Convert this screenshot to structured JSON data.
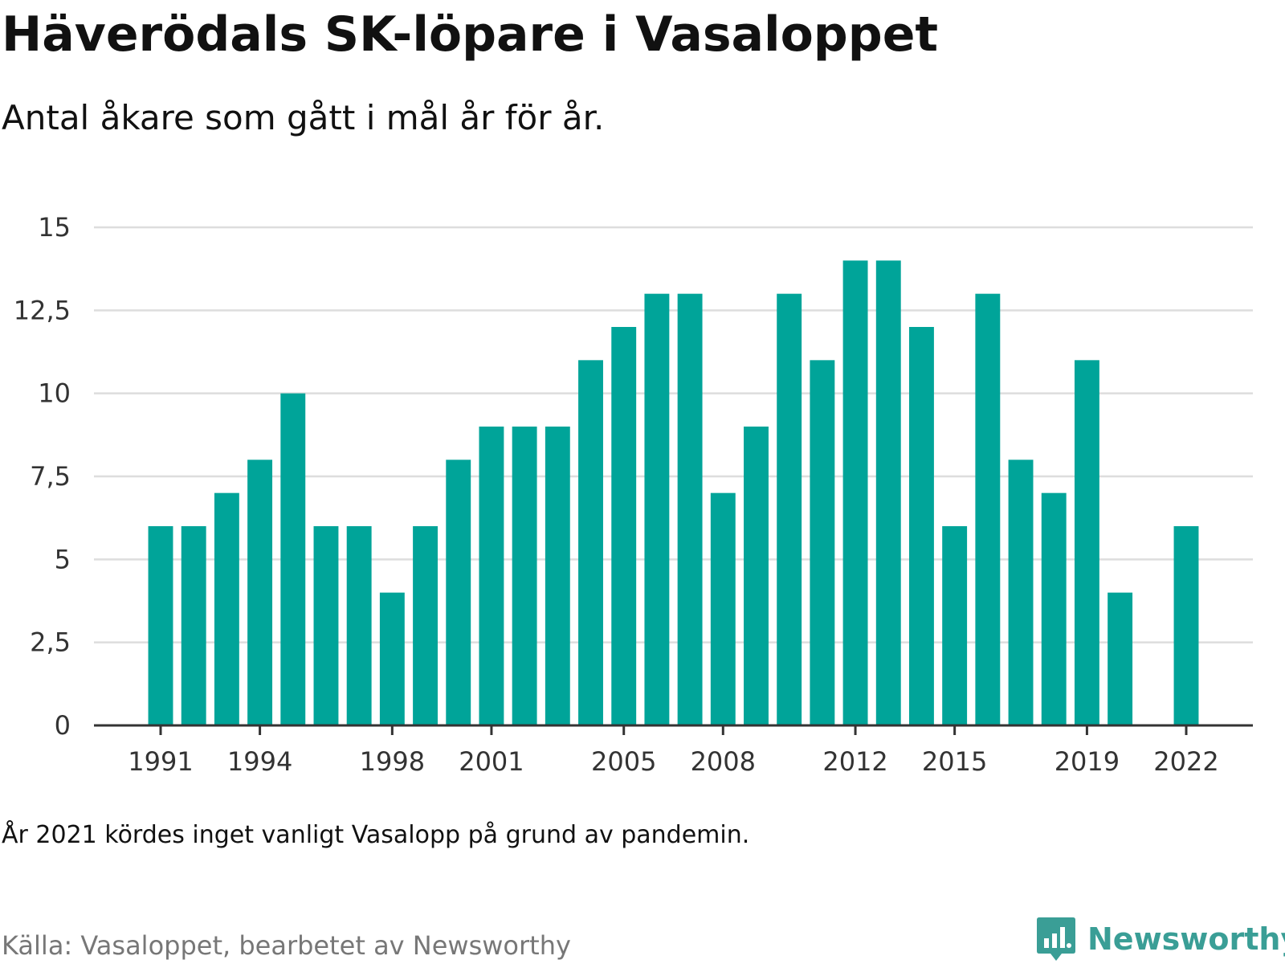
{
  "header": {
    "title": "Häverödals SK-löpare i Vasaloppet",
    "subtitle": "Antal åkare som gått i mål år för år."
  },
  "footer": {
    "note": "År 2021 kördes inget vanligt Vasalopp på grund av pandemin.",
    "source": "Källa: Vasaloppet, bearbetet av Newsworthy",
    "logo_text": "Newsworthy"
  },
  "colors": {
    "bar": "#00a499",
    "grid": "#dddddd",
    "axis": "#333333",
    "logo": "#3a9e96"
  },
  "icons": {
    "logo": "bar-chart-speech-bubble-icon"
  },
  "chart_data": {
    "type": "bar",
    "x": [
      1991,
      1992,
      1993,
      1994,
      1995,
      1996,
      1997,
      1998,
      1999,
      2000,
      2001,
      2002,
      2003,
      2004,
      2005,
      2006,
      2007,
      2008,
      2009,
      2010,
      2011,
      2012,
      2013,
      2014,
      2015,
      2016,
      2017,
      2018,
      2019,
      2020,
      2021,
      2022
    ],
    "values": [
      6,
      6,
      7,
      8,
      10,
      6,
      6,
      4,
      6,
      8,
      9,
      9,
      9,
      11,
      12,
      13,
      13,
      7,
      9,
      13,
      11,
      14,
      14,
      12,
      6,
      13,
      8,
      7,
      11,
      4,
      null,
      6
    ],
    "x_tick_labels": [
      "1991",
      "1994",
      "1998",
      "2001",
      "2005",
      "2008",
      "2012",
      "2015",
      "2019",
      "2022"
    ],
    "y_ticks": [
      0,
      2.5,
      5,
      7.5,
      10,
      12.5,
      15
    ],
    "y_tick_labels": [
      "0",
      "2,5",
      "5",
      "7,5",
      "10",
      "12,5",
      "15"
    ],
    "ylim": [
      0,
      15
    ],
    "grid": true,
    "legend": "none"
  }
}
